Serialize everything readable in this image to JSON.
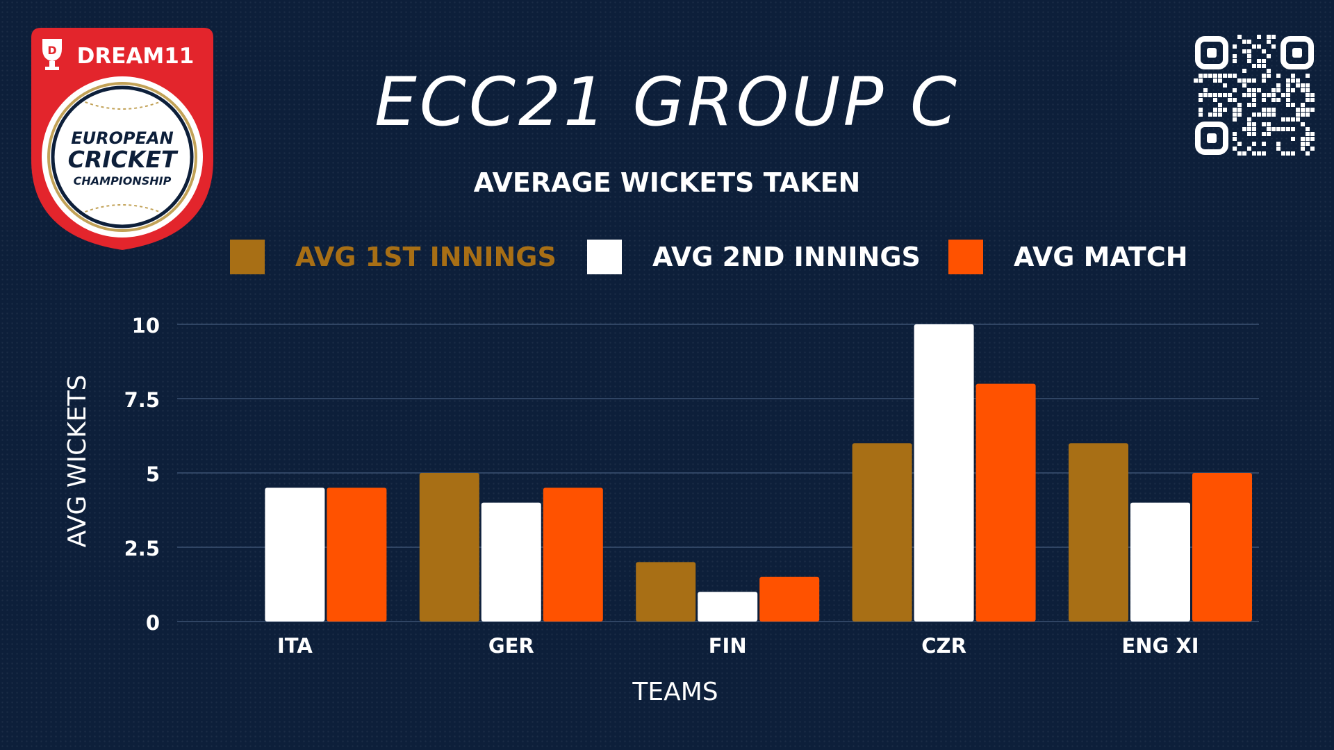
{
  "header": {
    "title": "ECC21 GROUP C",
    "subtitle": "AVERAGE WICKETS TAKEN"
  },
  "logo": {
    "brand": "DREAM11",
    "line1": "EUROPEAN",
    "line2": "CRICKET",
    "line3": "CHAMPIONSHIP"
  },
  "colors": {
    "background": "#0d1f3a",
    "first_innings": "#a86f15",
    "second_innings": "#ffffff",
    "match": "#ff5200",
    "gridline": "#3c5272",
    "logo_red": "#e3252c",
    "logo_gold": "#c2a257"
  },
  "legend": [
    {
      "label": "AVG 1ST INNINGS",
      "color": "#a86f15",
      "text_color": "#a86f15"
    },
    {
      "label": "AVG 2ND INNINGS",
      "color": "#ffffff",
      "text_color": "#ffffff"
    },
    {
      "label": "AVG MATCH",
      "color": "#ff5200",
      "text_color": "#ffffff"
    }
  ],
  "chart_data": {
    "type": "bar",
    "title": "AVERAGE WICKETS TAKEN",
    "xlabel": "TEAMS",
    "ylabel": "AVG WICKETS",
    "categories": [
      "ITA",
      "GER",
      "FIN",
      "CZR",
      "ENG XI"
    ],
    "ylim": [
      0,
      10
    ],
    "yticks": [
      0,
      2.5,
      5,
      7.5,
      10
    ],
    "ytick_labels": [
      "0",
      "2.5",
      "5",
      "7.5",
      "10"
    ],
    "grid": true,
    "legend_position": "top",
    "series": [
      {
        "name": "AVG 1ST INNINGS",
        "color": "#a86f15",
        "values": [
          0,
          5,
          2,
          6,
          6
        ]
      },
      {
        "name": "AVG 2ND INNINGS",
        "color": "#ffffff",
        "values": [
          4.5,
          4,
          1,
          10,
          4
        ]
      },
      {
        "name": "AVG MATCH",
        "color": "#ff5200",
        "values": [
          4.5,
          4.5,
          1.5,
          8,
          5
        ]
      }
    ]
  }
}
